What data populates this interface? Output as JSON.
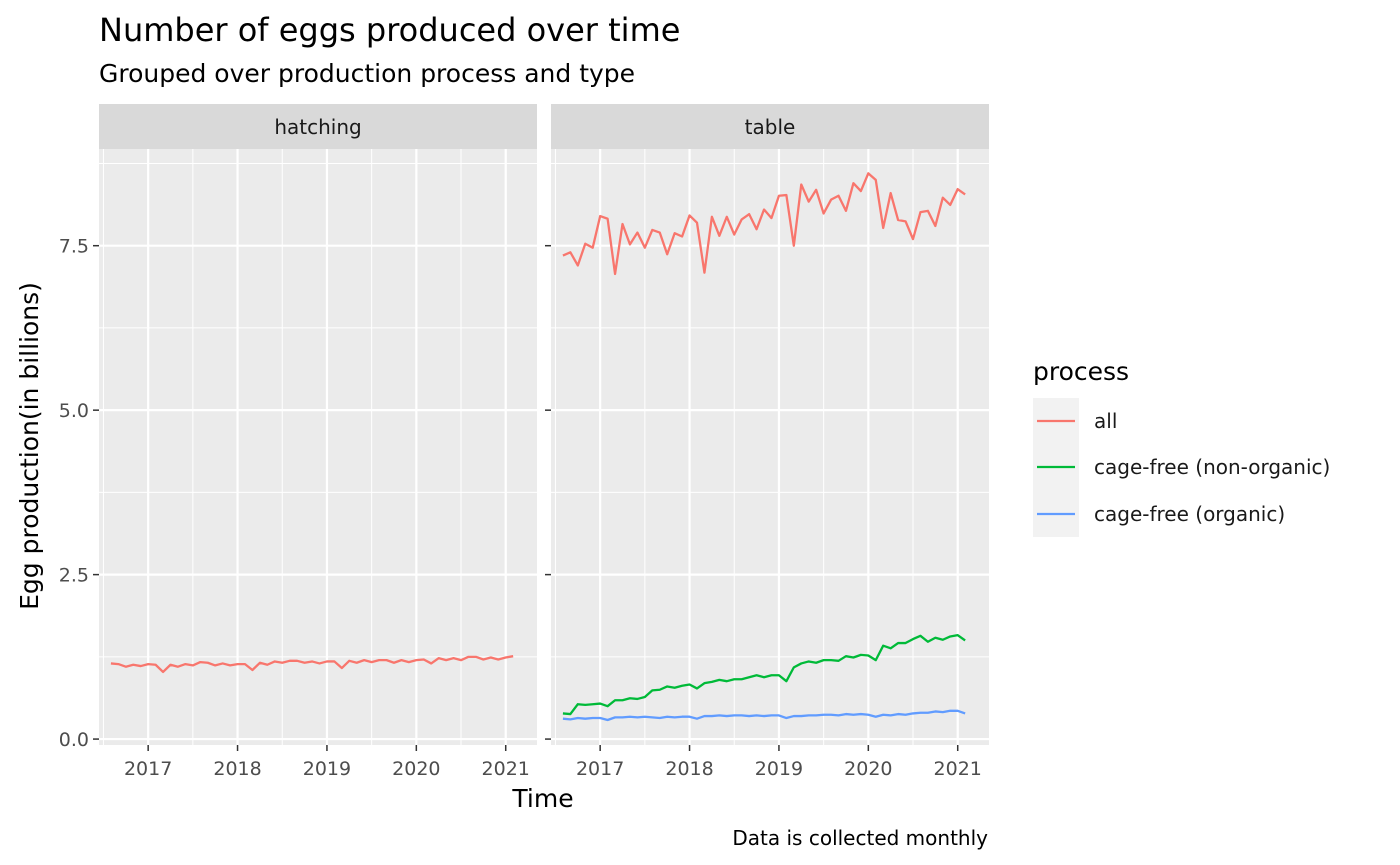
{
  "chart_data": {
    "type": "line",
    "title": "Number of eggs produced over time",
    "subtitle": "Grouped over production process and type",
    "xlabel": "Time",
    "ylabel": "Egg production(in billions)",
    "caption": "Data is collected monthly",
    "xlim": [
      2016.45,
      2021.35
    ],
    "ylim": [
      -0.09,
      8.97
    ],
    "x_ticks": [
      2017,
      2018,
      2019,
      2020,
      2021
    ],
    "y_ticks": [
      0.0,
      2.5,
      5.0,
      7.5
    ],
    "y_tick_labels": [
      "0.0",
      "2.5",
      "5.0",
      "7.5"
    ],
    "grid": true,
    "legend": {
      "title": "process",
      "position": "right",
      "entries": [
        "all",
        "cage-free (non-organic)",
        "cage-free (organic)"
      ]
    },
    "colors": {
      "all": "#F8766D",
      "cage-free (non-organic)": "#00BA38",
      "cage-free (organic)": "#619CFF"
    },
    "x_start": 2016.5833,
    "x_step": 0.08333,
    "panels": [
      {
        "name": "hatching",
        "series": [
          {
            "name": "all",
            "values": [
              1.15,
              1.14,
              1.1,
              1.13,
              1.11,
              1.14,
              1.13,
              1.02,
              1.13,
              1.1,
              1.14,
              1.12,
              1.17,
              1.16,
              1.12,
              1.15,
              1.12,
              1.14,
              1.14,
              1.05,
              1.16,
              1.13,
              1.18,
              1.16,
              1.19,
              1.19,
              1.16,
              1.18,
              1.15,
              1.18,
              1.18,
              1.08,
              1.19,
              1.16,
              1.2,
              1.17,
              1.2,
              1.2,
              1.16,
              1.2,
              1.17,
              1.2,
              1.21,
              1.15,
              1.23,
              1.2,
              1.23,
              1.2,
              1.25,
              1.25,
              1.21,
              1.24,
              1.21,
              1.24,
              1.26
            ]
          }
        ]
      },
      {
        "name": "table",
        "series": [
          {
            "name": "all",
            "values": [
              7.35,
              7.4,
              7.2,
              7.53,
              7.47,
              7.95,
              7.91,
              7.07,
              7.83,
              7.52,
              7.7,
              7.47,
              7.74,
              7.7,
              7.37,
              7.69,
              7.64,
              7.96,
              7.85,
              7.09,
              7.94,
              7.65,
              7.94,
              7.67,
              7.9,
              7.98,
              7.75,
              8.05,
              7.92,
              8.26,
              8.27,
              7.5,
              8.43,
              8.17,
              8.35,
              7.99,
              8.2,
              8.26,
              8.03,
              8.45,
              8.33,
              8.6,
              8.5,
              7.77,
              8.3,
              7.89,
              7.87,
              7.6,
              8.01,
              8.03,
              7.8,
              8.23,
              8.12,
              8.36,
              8.28
            ]
          },
          {
            "name": "cage-free (non-organic)",
            "values": [
              0.39,
              0.38,
              0.53,
              0.52,
              0.53,
              0.54,
              0.5,
              0.59,
              0.59,
              0.62,
              0.61,
              0.64,
              0.74,
              0.75,
              0.8,
              0.78,
              0.81,
              0.83,
              0.77,
              0.85,
              0.87,
              0.9,
              0.88,
              0.91,
              0.91,
              0.94,
              0.97,
              0.94,
              0.97,
              0.97,
              0.88,
              1.09,
              1.15,
              1.18,
              1.16,
              1.2,
              1.2,
              1.19,
              1.26,
              1.24,
              1.28,
              1.27,
              1.2,
              1.42,
              1.38,
              1.46,
              1.46,
              1.52,
              1.57,
              1.48,
              1.54,
              1.51,
              1.56,
              1.58,
              1.5
            ]
          },
          {
            "name": "cage-free (organic)",
            "values": [
              0.31,
              0.3,
              0.32,
              0.31,
              0.32,
              0.32,
              0.29,
              0.33,
              0.33,
              0.34,
              0.33,
              0.34,
              0.33,
              0.32,
              0.34,
              0.33,
              0.34,
              0.34,
              0.31,
              0.35,
              0.35,
              0.36,
              0.35,
              0.36,
              0.36,
              0.35,
              0.36,
              0.35,
              0.36,
              0.36,
              0.32,
              0.35,
              0.35,
              0.36,
              0.36,
              0.37,
              0.37,
              0.36,
              0.38,
              0.37,
              0.38,
              0.37,
              0.34,
              0.37,
              0.36,
              0.38,
              0.37,
              0.39,
              0.4,
              0.4,
              0.42,
              0.41,
              0.43,
              0.43,
              0.39
            ]
          }
        ]
      }
    ]
  }
}
